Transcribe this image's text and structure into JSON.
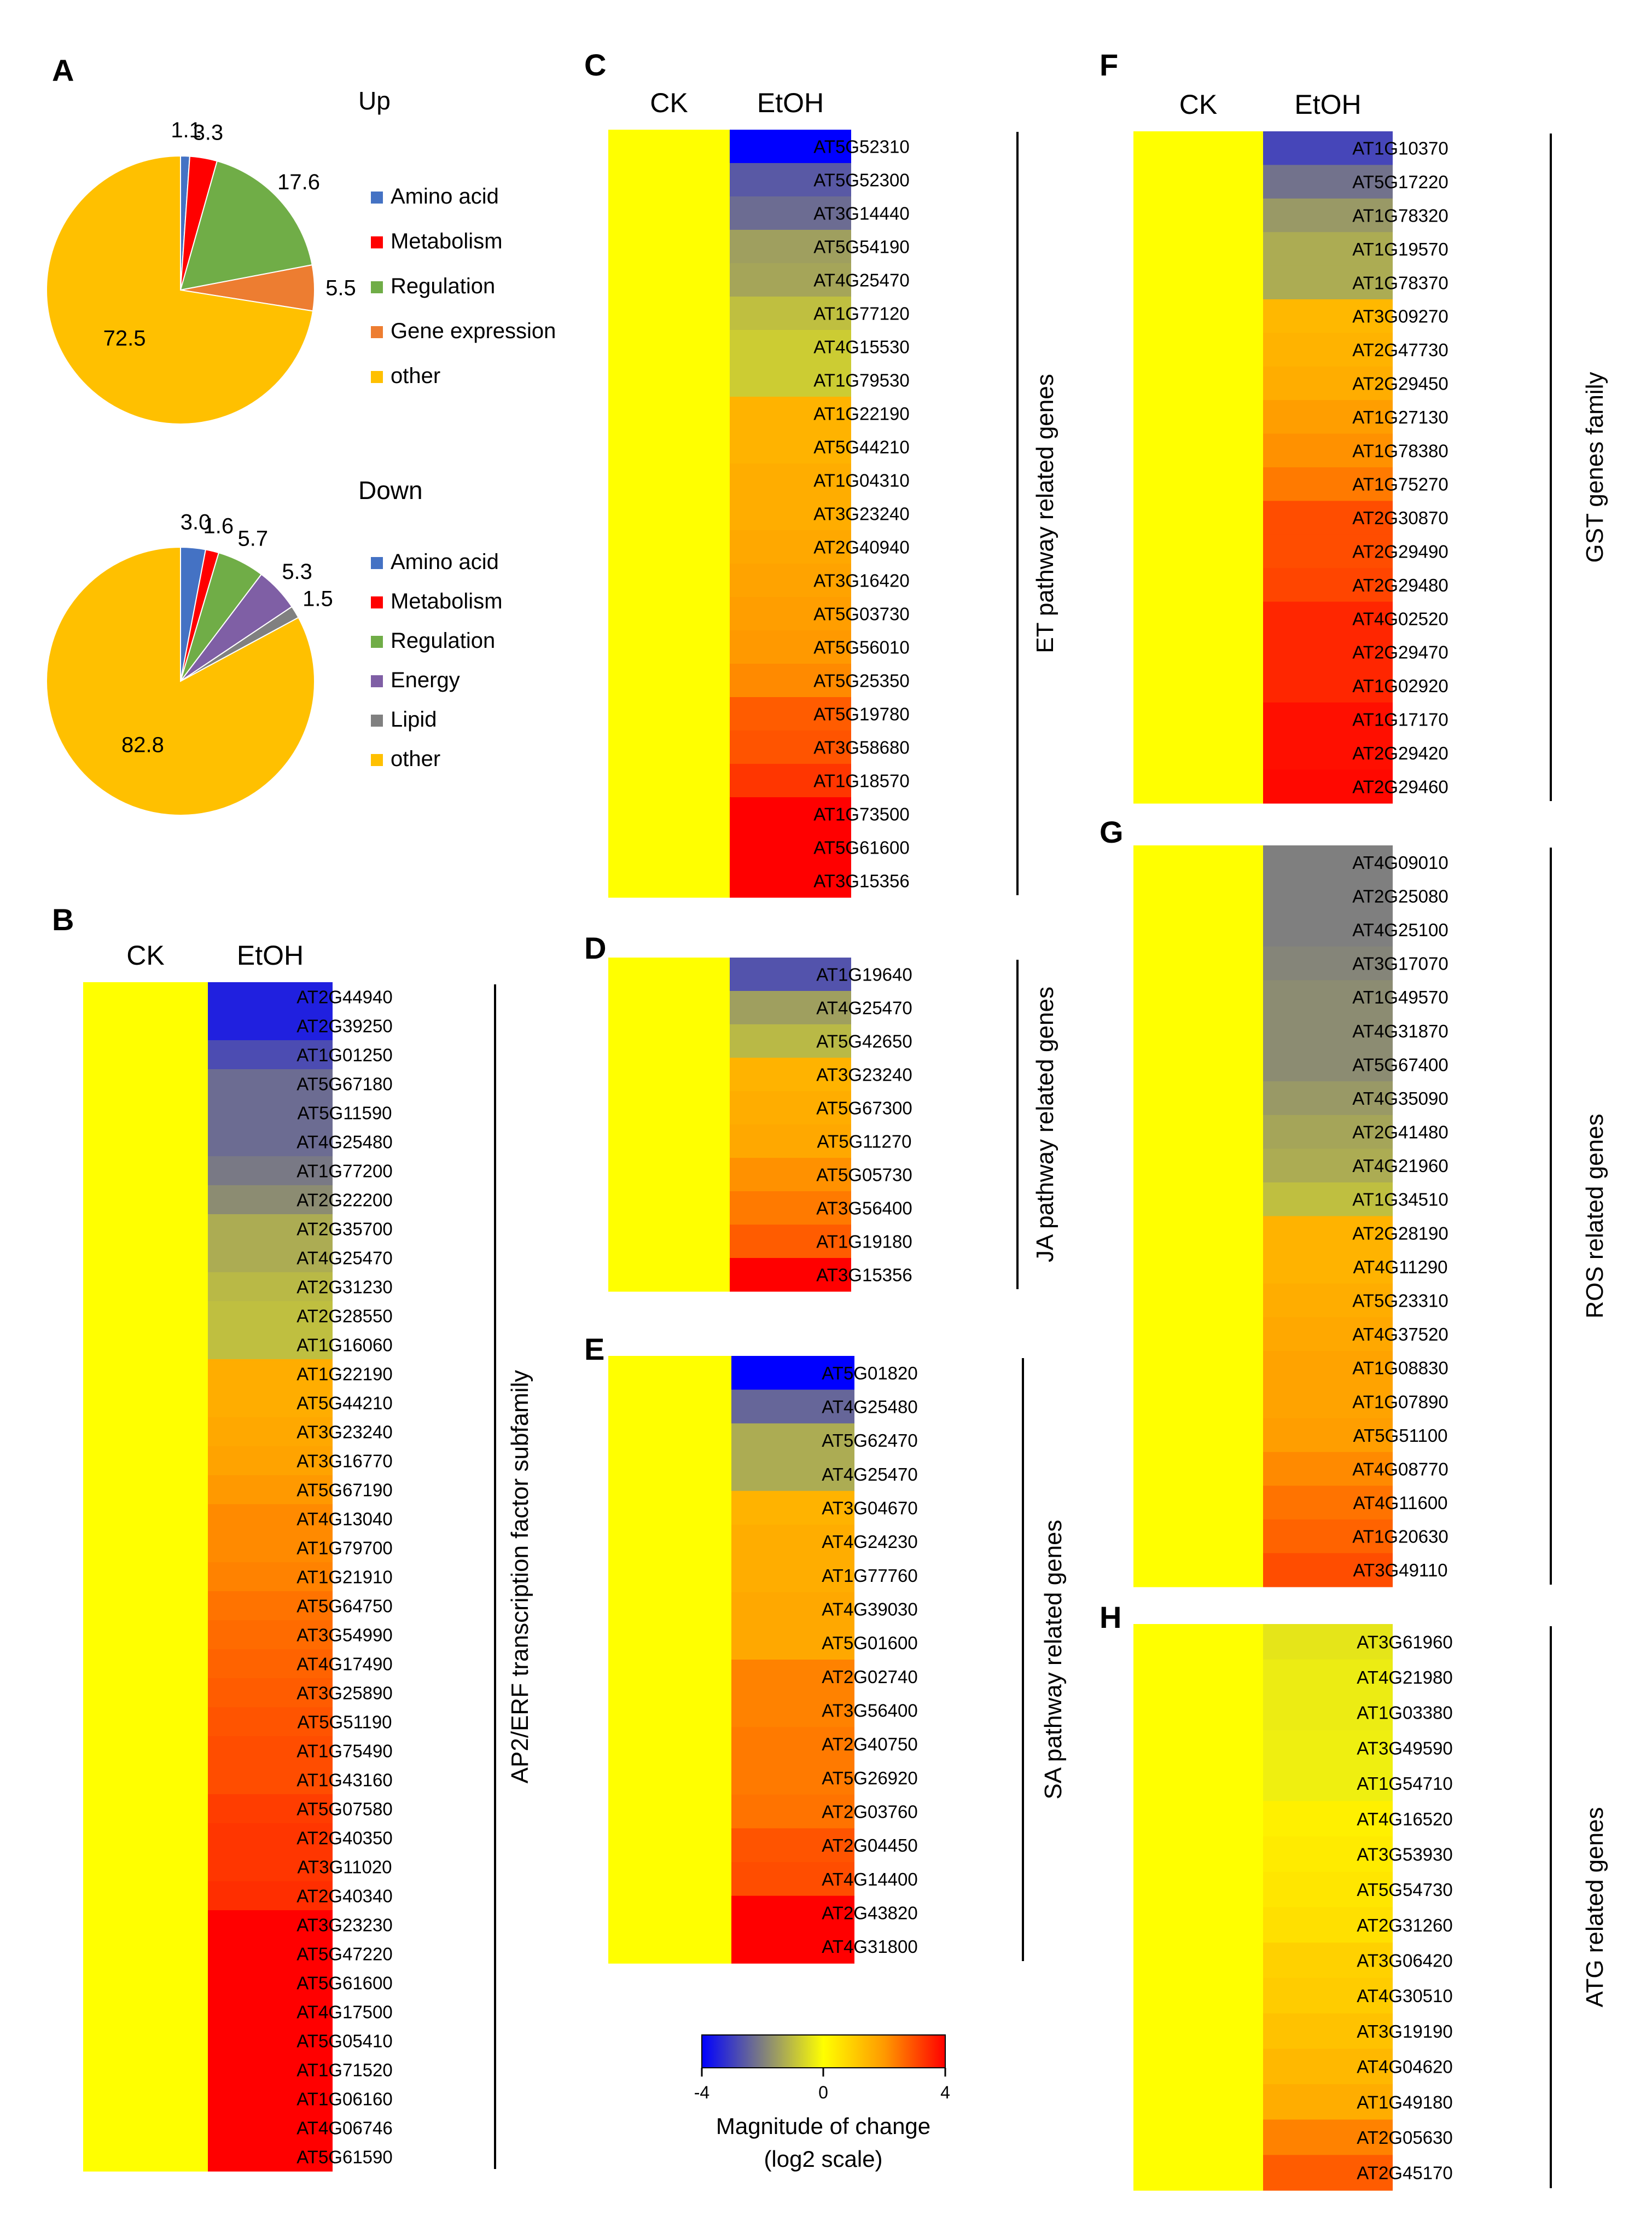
{
  "colors": {
    "scale": [
      "#0000ff",
      "#7f7f7f",
      "#ffff00",
      "#ff9900",
      "#ff0000"
    ],
    "amino_acid": "#4472c4",
    "metabolism": "#ff0000",
    "regulation": "#70ad47",
    "gene_expression": "#ed7d31",
    "energy": "#7f5fa5",
    "lipid": "#808080",
    "other": "#ffc000"
  },
  "chart_data": [
    {
      "id": "A-up",
      "panel": "A",
      "type": "pie",
      "title": "Up",
      "slices": [
        {
          "label": "Amino acid",
          "value": 1.1,
          "color": "#4472c4"
        },
        {
          "label": "Metabolism",
          "value": 3.3,
          "color": "#ff0000"
        },
        {
          "label": "Regulation",
          "value": 17.6,
          "color": "#70ad47"
        },
        {
          "label": "Gene expression",
          "value": 5.5,
          "color": "#ed7d31"
        },
        {
          "label": "other",
          "value": 72.5,
          "color": "#ffc000"
        }
      ],
      "legend": "right"
    },
    {
      "id": "A-down",
      "panel": "A",
      "type": "pie",
      "title": "Down",
      "slices": [
        {
          "label": "Amino acid",
          "value": 3.0,
          "color": "#4472c4"
        },
        {
          "label": "Metabolism",
          "value": 1.6,
          "color": "#ff0000"
        },
        {
          "label": "Regulation",
          "value": 5.7,
          "color": "#70ad47"
        },
        {
          "label": "Energy",
          "value": 5.3,
          "color": "#7f5fa5"
        },
        {
          "label": "Lipid",
          "value": 1.5,
          "color": "#808080"
        },
        {
          "label": "other",
          "value": 82.8,
          "color": "#ffc000"
        }
      ],
      "legend": "right"
    },
    {
      "id": "B",
      "panel": "B",
      "type": "heatmap",
      "title": "AP2/ERF transcription factor subfamily",
      "columns": [
        "CK",
        "EtOH"
      ],
      "value_range": [
        -4,
        4
      ],
      "rows": [
        "AT2G44940",
        "AT2G39250",
        "AT1G01250",
        "AT5G67180",
        "AT5G11590",
        "AT4G25480",
        "AT1G77200",
        "AT2G22200",
        "AT2G35700",
        "AT4G25470",
        "AT2G31230",
        "AT2G28550",
        "AT1G16060",
        "AT1G22190",
        "AT5G44210",
        "AT3G23240",
        "AT3G16770",
        "AT5G67190",
        "AT4G13040",
        "AT1G79700",
        "AT1G21910",
        "AT5G64750",
        "AT3G54990",
        "AT4G17490",
        "AT3G25890",
        "AT5G51190",
        "AT1G75490",
        "AT1G43160",
        "AT5G07580",
        "AT2G40350",
        "AT3G11020",
        "AT2G40340",
        "AT3G23230",
        "AT5G47220",
        "AT5G61600",
        "AT4G17500",
        "AT5G05410",
        "AT1G71520",
        "AT1G06160",
        "AT4G06746",
        "AT5G61590"
      ],
      "ck_values": [
        0,
        0,
        0,
        0,
        0,
        0,
        0,
        0,
        0,
        0,
        0,
        0,
        0,
        0,
        0,
        0,
        0,
        0,
        0,
        0,
        0,
        0,
        0,
        0,
        0,
        0,
        0,
        0,
        0,
        0,
        0,
        0,
        0,
        0,
        0,
        0,
        0,
        0,
        0,
        0,
        0
      ],
      "etoh_values": [
        -3.5,
        -3.5,
        -2.8,
        -2.3,
        -2.3,
        -2.3,
        -2.1,
        -1.8,
        -1.3,
        -1.3,
        -1.1,
        -1.0,
        -1.0,
        1.6,
        1.6,
        1.7,
        1.8,
        2.0,
        2.2,
        2.2,
        2.3,
        2.5,
        2.6,
        2.7,
        2.8,
        2.9,
        3.0,
        3.0,
        3.2,
        3.3,
        3.3,
        3.4,
        4.0,
        4.0,
        4.0,
        4.0,
        4.0,
        4.0,
        4.0,
        4.0,
        4.0
      ]
    },
    {
      "id": "C",
      "panel": "C",
      "type": "heatmap",
      "title": "ET pathway related genes",
      "columns": [
        "CK",
        "EtOH"
      ],
      "value_range": [
        -4,
        4
      ],
      "rows": [
        "AT5G52310",
        "AT5G52300",
        "AT3G14440",
        "AT5G54190",
        "AT4G25470",
        "AT1G77120",
        "AT4G15530",
        "AT1G79530",
        "AT1G22190",
        "AT5G44210",
        "AT1G04310",
        "AT3G23240",
        "AT2G40940",
        "AT3G16420",
        "AT5G03730",
        "AT5G56010",
        "AT5G25350",
        "AT5G19780",
        "AT3G58680",
        "AT1G18570",
        "AT1G73500",
        "AT5G61600",
        "AT3G15356"
      ],
      "ck_values": [
        0,
        0,
        0,
        0,
        0,
        0,
        0,
        0,
        0,
        0,
        0,
        0,
        0,
        0,
        0,
        0,
        0,
        0,
        0,
        0,
        0,
        0,
        0
      ],
      "etoh_values": [
        -4.0,
        -2.6,
        -2.3,
        -1.5,
        -1.4,
        -1.0,
        -0.8,
        -0.8,
        1.5,
        1.5,
        1.6,
        1.6,
        1.7,
        1.8,
        1.9,
        2.0,
        2.2,
        2.8,
        2.9,
        3.3,
        4.0,
        4.0,
        4.0
      ]
    },
    {
      "id": "D",
      "panel": "D",
      "type": "heatmap",
      "title": "JA pathway related genes",
      "columns": [
        "CK",
        "EtOH"
      ],
      "value_range": [
        -4,
        4
      ],
      "rows": [
        "AT1G19640",
        "AT4G25470",
        "AT5G42650",
        "AT3G23240",
        "AT5G67300",
        "AT5G11270",
        "AT5G05730",
        "AT3G56400",
        "AT1G19180",
        "AT3G15356"
      ],
      "ck_values": [
        0,
        0,
        0,
        0,
        0,
        0,
        0,
        0,
        0,
        0
      ],
      "etoh_values": [
        -2.7,
        -1.5,
        -1.1,
        1.5,
        1.6,
        1.7,
        2.1,
        2.4,
        2.8,
        4.0
      ]
    },
    {
      "id": "E",
      "panel": "E",
      "type": "heatmap",
      "title": "SA pathway related genes",
      "columns": [
        "CK",
        "EtOH"
      ],
      "value_range": [
        -4,
        4
      ],
      "rows": [
        "AT5G01820",
        "AT4G25480",
        "AT5G62470",
        "AT4G25470",
        "AT3G04670",
        "AT4G24230",
        "AT1G77760",
        "AT4G39030",
        "AT5G01600",
        "AT2G02740",
        "AT3G56400",
        "AT2G40750",
        "AT5G26920",
        "AT2G03760",
        "AT2G04450",
        "AT4G14400",
        "AT2G43820",
        "AT4G31800"
      ],
      "ck_values": [
        0,
        0,
        0,
        0,
        0,
        0,
        0,
        0,
        0,
        0,
        0,
        0,
        0,
        0,
        0,
        0,
        0,
        0
      ],
      "etoh_values": [
        -4.0,
        -2.4,
        -1.3,
        -1.3,
        1.5,
        1.6,
        1.6,
        1.7,
        1.7,
        2.3,
        2.3,
        2.4,
        2.4,
        2.5,
        2.9,
        3.0,
        4.0,
        4.0
      ]
    },
    {
      "id": "F",
      "panel": "F",
      "type": "heatmap",
      "title": "GST genes family",
      "columns": [
        "CK",
        "EtOH"
      ],
      "value_range": [
        -4,
        4
      ],
      "rows": [
        "AT1G10370",
        "AT5G17220",
        "AT1G78320",
        "AT1G19570",
        "AT1G78370",
        "AT3G09270",
        "AT2G47730",
        "AT2G29450",
        "AT1G27130",
        "AT1G78380",
        "AT1G75270",
        "AT2G30870",
        "AT2G29490",
        "AT2G29480",
        "AT4G02520",
        "AT2G29470",
        "AT1G02920",
        "AT1G17170",
        "AT2G29420",
        "AT2G29460"
      ],
      "ck_values": [
        0,
        0,
        0,
        0,
        0,
        0,
        0,
        0,
        0,
        0,
        0,
        0,
        0,
        0,
        0,
        0,
        0,
        0,
        0,
        0
      ],
      "etoh_values": [
        -2.9,
        -2.2,
        -1.6,
        -1.3,
        -1.3,
        1.4,
        1.5,
        1.6,
        1.9,
        2.1,
        2.4,
        3.0,
        3.0,
        3.1,
        3.5,
        3.5,
        3.5,
        3.8,
        3.8,
        3.9
      ]
    },
    {
      "id": "G",
      "panel": "G",
      "type": "heatmap",
      "title": "ROS related genes",
      "columns": [
        "CK",
        "EtOH"
      ],
      "value_range": [
        -4,
        4
      ],
      "rows": [
        "AT4G09010",
        "AT2G25080",
        "AT4G25100",
        "AT3G17070",
        "AT1G49570",
        "AT4G31870",
        "AT5G67400",
        "AT4G35090",
        "AT2G41480",
        "AT4G21960",
        "AT1G34510",
        "AT2G28190",
        "AT4G11290",
        "AT5G23310",
        "AT4G37520",
        "AT1G08830",
        "AT1G07890",
        "AT5G51100",
        "AT4G08770",
        "AT4G11600",
        "AT1G20630",
        "AT3G49110"
      ],
      "ck_values": [
        0,
        0,
        0,
        0,
        0,
        0,
        0,
        0,
        0,
        0,
        0,
        0,
        0,
        0,
        0,
        0,
        0,
        0,
        0,
        0,
        0,
        0
      ],
      "etoh_values": [
        -2.0,
        -2.0,
        -2.0,
        -1.9,
        -1.8,
        -1.8,
        -1.8,
        -1.6,
        -1.4,
        -1.3,
        -1.0,
        1.5,
        1.5,
        1.6,
        1.7,
        1.8,
        1.8,
        1.9,
        2.2,
        2.5,
        2.7,
        3.0
      ]
    },
    {
      "id": "H",
      "panel": "H",
      "type": "heatmap",
      "title": "ATG related genes",
      "columns": [
        "CK",
        "EtOH"
      ],
      "value_range": [
        -4,
        4
      ],
      "rows": [
        "AT3G61960",
        "AT4G21980",
        "AT1G03380",
        "AT3G49590",
        "AT1G54710",
        "AT4G16520",
        "AT3G53930",
        "AT5G54730",
        "AT2G31260",
        "AT3G06420",
        "AT4G30510",
        "AT3G19190",
        "AT4G04620",
        "AT1G49180",
        "AT2G05630",
        "AT2G45170"
      ],
      "ck_values": [
        0,
        0,
        0,
        0,
        0,
        0,
        0,
        0,
        0,
        0,
        0,
        0,
        0,
        0,
        0,
        0
      ],
      "etoh_values": [
        -0.4,
        -0.3,
        -0.3,
        -0.25,
        -0.25,
        0.3,
        0.4,
        0.5,
        0.6,
        0.9,
        1.0,
        1.2,
        1.4,
        1.6,
        2.3,
        2.8
      ]
    }
  ],
  "color_scale": {
    "min": "-4",
    "mid": "0",
    "max": "4",
    "label_line1": "Magnitude of change",
    "label_line2": "(log2 scale)"
  }
}
